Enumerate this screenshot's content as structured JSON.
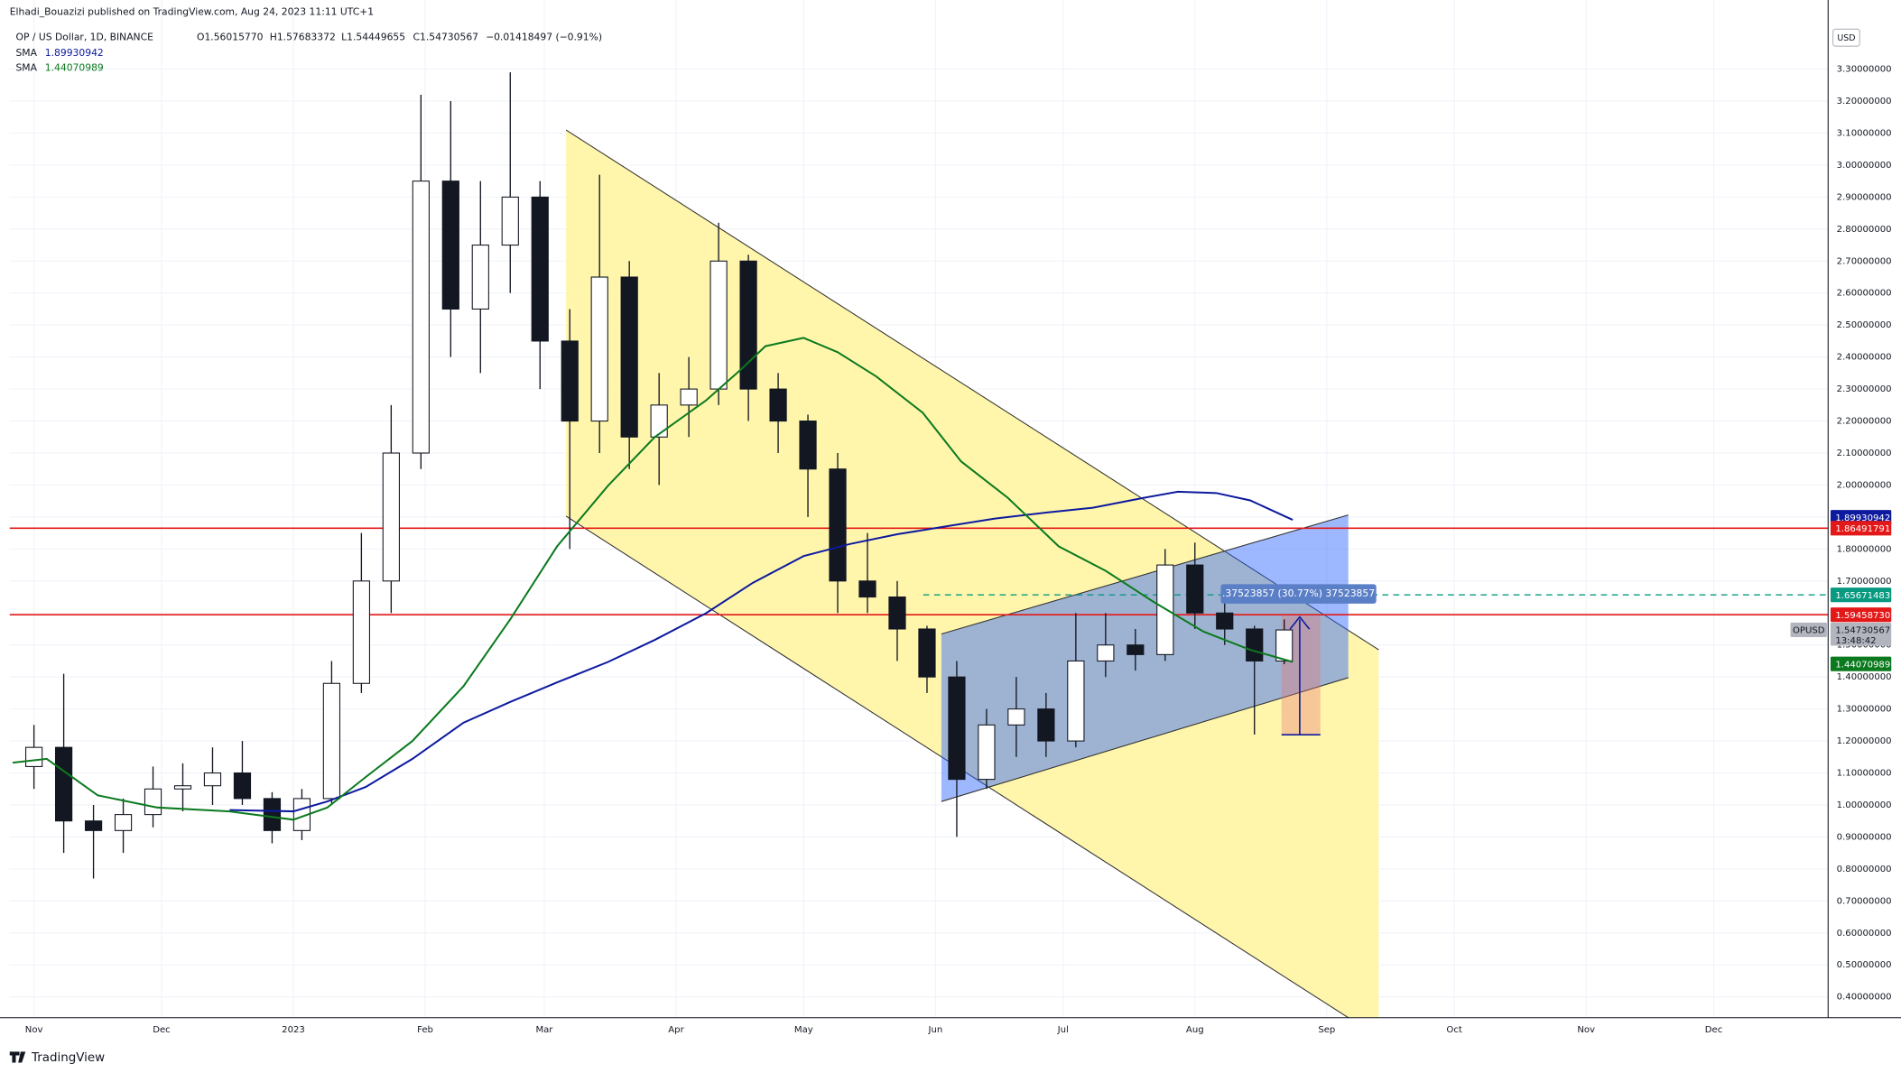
{
  "header": {
    "publisher": "Elhadi_Bouazizi published on TradingView.com, Aug 24, 2023 11:11 UTC+1",
    "symbol": "OP / US Dollar, 1D, BINANCE",
    "open": "O1.56015770",
    "high": "H1.57683372",
    "low": "L1.54449655",
    "close": "C1.54730567",
    "change": "−0.01418497 (−0.91%)",
    "currency": "USD",
    "footer": "TradingView"
  },
  "chart_data": {
    "type": "candlestick",
    "xlim": [
      -5.7,
      421.9
    ],
    "xticks": [
      {
        "value": 0,
        "label": "Nov"
      },
      {
        "value": 30,
        "label": "Dec"
      },
      {
        "value": 61,
        "label": "2023"
      },
      {
        "value": 92,
        "label": "Feb"
      },
      {
        "value": 120,
        "label": "Mar"
      },
      {
        "value": 151,
        "label": "Apr"
      },
      {
        "value": 181,
        "label": "May"
      },
      {
        "value": 212,
        "label": "Jun"
      },
      {
        "value": 242,
        "label": "Jul"
      },
      {
        "value": 273,
        "label": "Aug"
      },
      {
        "value": 304,
        "label": "Sep"
      },
      {
        "value": 334,
        "label": "Oct"
      },
      {
        "value": 365,
        "label": "Nov"
      },
      {
        "value": 395,
        "label": "Dec"
      }
    ],
    "ylim": [
      0.335,
      3.44
    ],
    "yticks": [
      {
        "value": 0.4,
        "label": "0.40000000"
      },
      {
        "value": 0.5,
        "label": "0.50000000"
      },
      {
        "value": 0.6,
        "label": "0.60000000"
      },
      {
        "value": 0.7,
        "label": "0.70000000"
      },
      {
        "value": 0.8,
        "label": "0.80000000"
      },
      {
        "value": 0.9,
        "label": "0.90000000"
      },
      {
        "value": 1.0,
        "label": "1.00000000"
      },
      {
        "value": 1.1,
        "label": "1.10000000"
      },
      {
        "value": 1.2,
        "label": "1.20000000"
      },
      {
        "value": 1.3,
        "label": "1.30000000"
      },
      {
        "value": 1.4,
        "label": "1.40000000"
      },
      {
        "value": 1.5,
        "label": "1.50000000"
      },
      {
        "value": 1.6,
        "label": "1.60000000"
      },
      {
        "value": 1.7,
        "label": "1.70000000"
      },
      {
        "value": 1.8,
        "label": "1.80000000"
      },
      {
        "value": 1.9,
        "label": "1.90000000"
      },
      {
        "value": 2.0,
        "label": "2.00000000"
      },
      {
        "value": 2.1,
        "label": "2.10000000"
      },
      {
        "value": 2.2,
        "label": "2.20000000"
      },
      {
        "value": 2.3,
        "label": "2.30000000"
      },
      {
        "value": 2.4,
        "label": "2.40000000"
      },
      {
        "value": 2.5,
        "label": "2.50000000"
      },
      {
        "value": 2.6,
        "label": "2.60000000"
      },
      {
        "value": 2.7,
        "label": "2.70000000"
      },
      {
        "value": 2.8,
        "label": "2.80000000"
      },
      {
        "value": 2.9,
        "label": "2.90000000"
      },
      {
        "value": 3.0,
        "label": "3.00000000"
      },
      {
        "value": 3.1,
        "label": "3.10000000"
      },
      {
        "value": 3.2,
        "label": "3.20000000"
      },
      {
        "value": 3.3,
        "label": "3.30000000"
      }
    ],
    "grid": true,
    "candles": {
      "x": [
        0,
        7,
        14,
        21,
        28,
        35,
        42,
        49,
        56,
        63,
        70,
        77,
        84,
        91,
        98,
        105,
        112,
        119,
        126,
        133,
        140,
        147,
        154,
        161,
        168,
        175,
        182,
        189,
        196,
        203,
        210,
        217,
        224,
        231,
        238,
        245,
        252,
        259,
        266,
        273,
        280,
        287,
        294
      ],
      "open": [
        1.12,
        1.18,
        0.95,
        0.92,
        0.97,
        1.05,
        1.06,
        1.1,
        1.02,
        0.92,
        1.02,
        1.38,
        1.7,
        2.1,
        2.95,
        2.55,
        2.75,
        2.9,
        2.45,
        2.2,
        2.65,
        2.15,
        2.25,
        2.3,
        2.7,
        2.3,
        2.2,
        2.05,
        1.7,
        1.65,
        1.55,
        1.4,
        1.08,
        1.25,
        1.3,
        1.2,
        1.45,
        1.5,
        1.47,
        1.75,
        1.6,
        1.55,
        1.45
      ],
      "high": [
        1.25,
        1.41,
        1.0,
        1.02,
        1.12,
        1.13,
        1.18,
        1.2,
        1.04,
        1.05,
        1.45,
        1.85,
        2.25,
        3.22,
        3.2,
        2.95,
        3.29,
        2.95,
        2.55,
        2.97,
        2.7,
        2.35,
        2.4,
        2.82,
        2.72,
        2.35,
        2.22,
        2.1,
        1.85,
        1.7,
        1.56,
        1.45,
        1.3,
        1.4,
        1.35,
        1.6,
        1.6,
        1.55,
        1.8,
        1.82,
        1.65,
        1.56,
        1.58
      ],
      "low": [
        1.05,
        0.85,
        0.77,
        0.85,
        0.93,
        0.98,
        1.0,
        1.0,
        0.88,
        0.89,
        1.0,
        1.35,
        1.6,
        2.05,
        2.4,
        2.35,
        2.6,
        2.3,
        1.8,
        2.1,
        2.05,
        2.0,
        2.15,
        2.25,
        2.2,
        2.1,
        1.9,
        1.6,
        1.6,
        1.45,
        1.35,
        0.9,
        1.05,
        1.15,
        1.15,
        1.18,
        1.4,
        1.42,
        1.45,
        1.55,
        1.5,
        1.22,
        1.44
      ],
      "close": [
        1.18,
        0.95,
        0.92,
        0.97,
        1.05,
        1.06,
        1.1,
        1.02,
        0.92,
        1.02,
        1.38,
        1.7,
        2.1,
        2.95,
        2.55,
        2.75,
        2.9,
        2.45,
        2.2,
        2.65,
        2.15,
        2.25,
        2.3,
        2.7,
        2.3,
        2.2,
        2.05,
        1.7,
        1.65,
        1.55,
        1.4,
        1.08,
        1.25,
        1.3,
        1.2,
        1.45,
        1.5,
        1.47,
        1.75,
        1.6,
        1.55,
        1.45,
        1.547
      ]
    },
    "series": [
      {
        "name": "SMA",
        "color": "#0d1a9e",
        "last_value": 1.89930942,
        "x": [
          46,
          61,
          69,
          78,
          89,
          101,
          112,
          123,
          135,
          146,
          158,
          169,
          181,
          192,
          203,
          215,
          226,
          238,
          249,
          261,
          269,
          278,
          286,
          296
        ],
        "values": [
          0.984,
          0.98,
          1.011,
          1.056,
          1.144,
          1.257,
          1.322,
          1.383,
          1.447,
          1.516,
          1.599,
          1.694,
          1.778,
          1.816,
          1.846,
          1.872,
          1.895,
          1.914,
          1.929,
          1.96,
          1.979,
          1.975,
          1.952,
          1.891
        ]
      },
      {
        "name": "SMA",
        "color": "#0b7a1e",
        "last_value": 1.44070989,
        "x": [
          -5,
          3,
          15,
          29,
          46,
          61,
          69,
          78,
          89,
          101,
          112,
          123,
          135,
          146,
          158,
          166,
          172,
          181,
          189,
          198,
          209,
          218,
          229,
          241,
          252,
          263,
          275,
          286,
          296
        ],
        "values": [
          1.132,
          1.144,
          1.03,
          0.992,
          0.98,
          0.954,
          0.992,
          1.087,
          1.2,
          1.371,
          1.58,
          1.808,
          1.998,
          2.15,
          2.264,
          2.358,
          2.434,
          2.46,
          2.415,
          2.34,
          2.226,
          2.074,
          1.96,
          1.808,
          1.732,
          1.637,
          1.542,
          1.485,
          1.447
        ]
      }
    ],
    "hlines": [
      {
        "value": 1.86491791,
        "color": "#e31919",
        "dashed": false
      },
      {
        "value": 1.5945873,
        "color": "#e31919",
        "dashed": false
      },
      {
        "value": 1.65671483,
        "color": "#089981",
        "dashed": true
      }
    ],
    "price_tags": [
      {
        "value": 1.89930942,
        "label": "1.89930942",
        "color": "#0d1a9e"
      },
      {
        "value": 1.86491791,
        "label": "1.86491791",
        "color": "#e31919"
      },
      {
        "value": 1.65671483,
        "label": "1.65671483",
        "color": "#089981"
      },
      {
        "value": 1.5945873,
        "label": "1.59458730",
        "color": "#e31919"
      },
      {
        "value": 1.44070989,
        "label": "1.44070989",
        "color": "#0b7a1e"
      }
    ],
    "last_price": {
      "symbol": "OPUSD",
      "value": 1.54730567,
      "label": "1.54730567",
      "countdown": "13:48:42"
    },
    "annotations": [
      ".37523857 (30.77%) 37523857"
    ]
  }
}
